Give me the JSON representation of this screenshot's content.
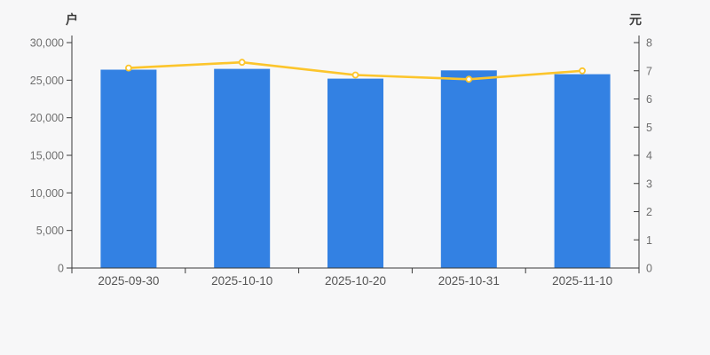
{
  "chart_data": {
    "type": "bar",
    "subtype": "bar-line-combo",
    "categories": [
      "2025-09-30",
      "2025-10-10",
      "2025-10-20",
      "2025-10-31",
      "2025-11-10"
    ],
    "series": [
      {
        "id": "bar-series",
        "type": "bar",
        "yaxis": "left",
        "color": "#3381e3",
        "values": [
          26400,
          26500,
          25200,
          26300,
          25800
        ]
      },
      {
        "id": "line-series",
        "type": "line",
        "yaxis": "right",
        "color": "#fcc52c",
        "marker_fill": "#ffffff",
        "values": [
          7.1,
          7.3,
          6.85,
          6.7,
          7.0
        ]
      }
    ],
    "left_axis": {
      "label": "户",
      "min": 0,
      "max": 30000,
      "ticks": [
        0,
        5000,
        10000,
        15000,
        20000,
        25000,
        30000
      ],
      "tick_labels": [
        "0",
        "5,000",
        "10,000",
        "15,000",
        "20,000",
        "25,000",
        "30,000"
      ]
    },
    "right_axis": {
      "label": "元",
      "min": 0,
      "max": 8,
      "ticks": [
        0,
        1,
        2,
        3,
        4,
        5,
        6,
        7,
        8
      ],
      "tick_labels": [
        "0",
        "1",
        "2",
        "3",
        "4",
        "5",
        "6",
        "7",
        "8"
      ]
    },
    "legend_position": "none",
    "grid": false
  },
  "style": {
    "background": "#f7f7f8",
    "axis_color": "#3a3a3a",
    "tick_label_color": "#6f6f6f",
    "date_label_color": "#555555",
    "unit_label_color": "#3c3c3c"
  }
}
